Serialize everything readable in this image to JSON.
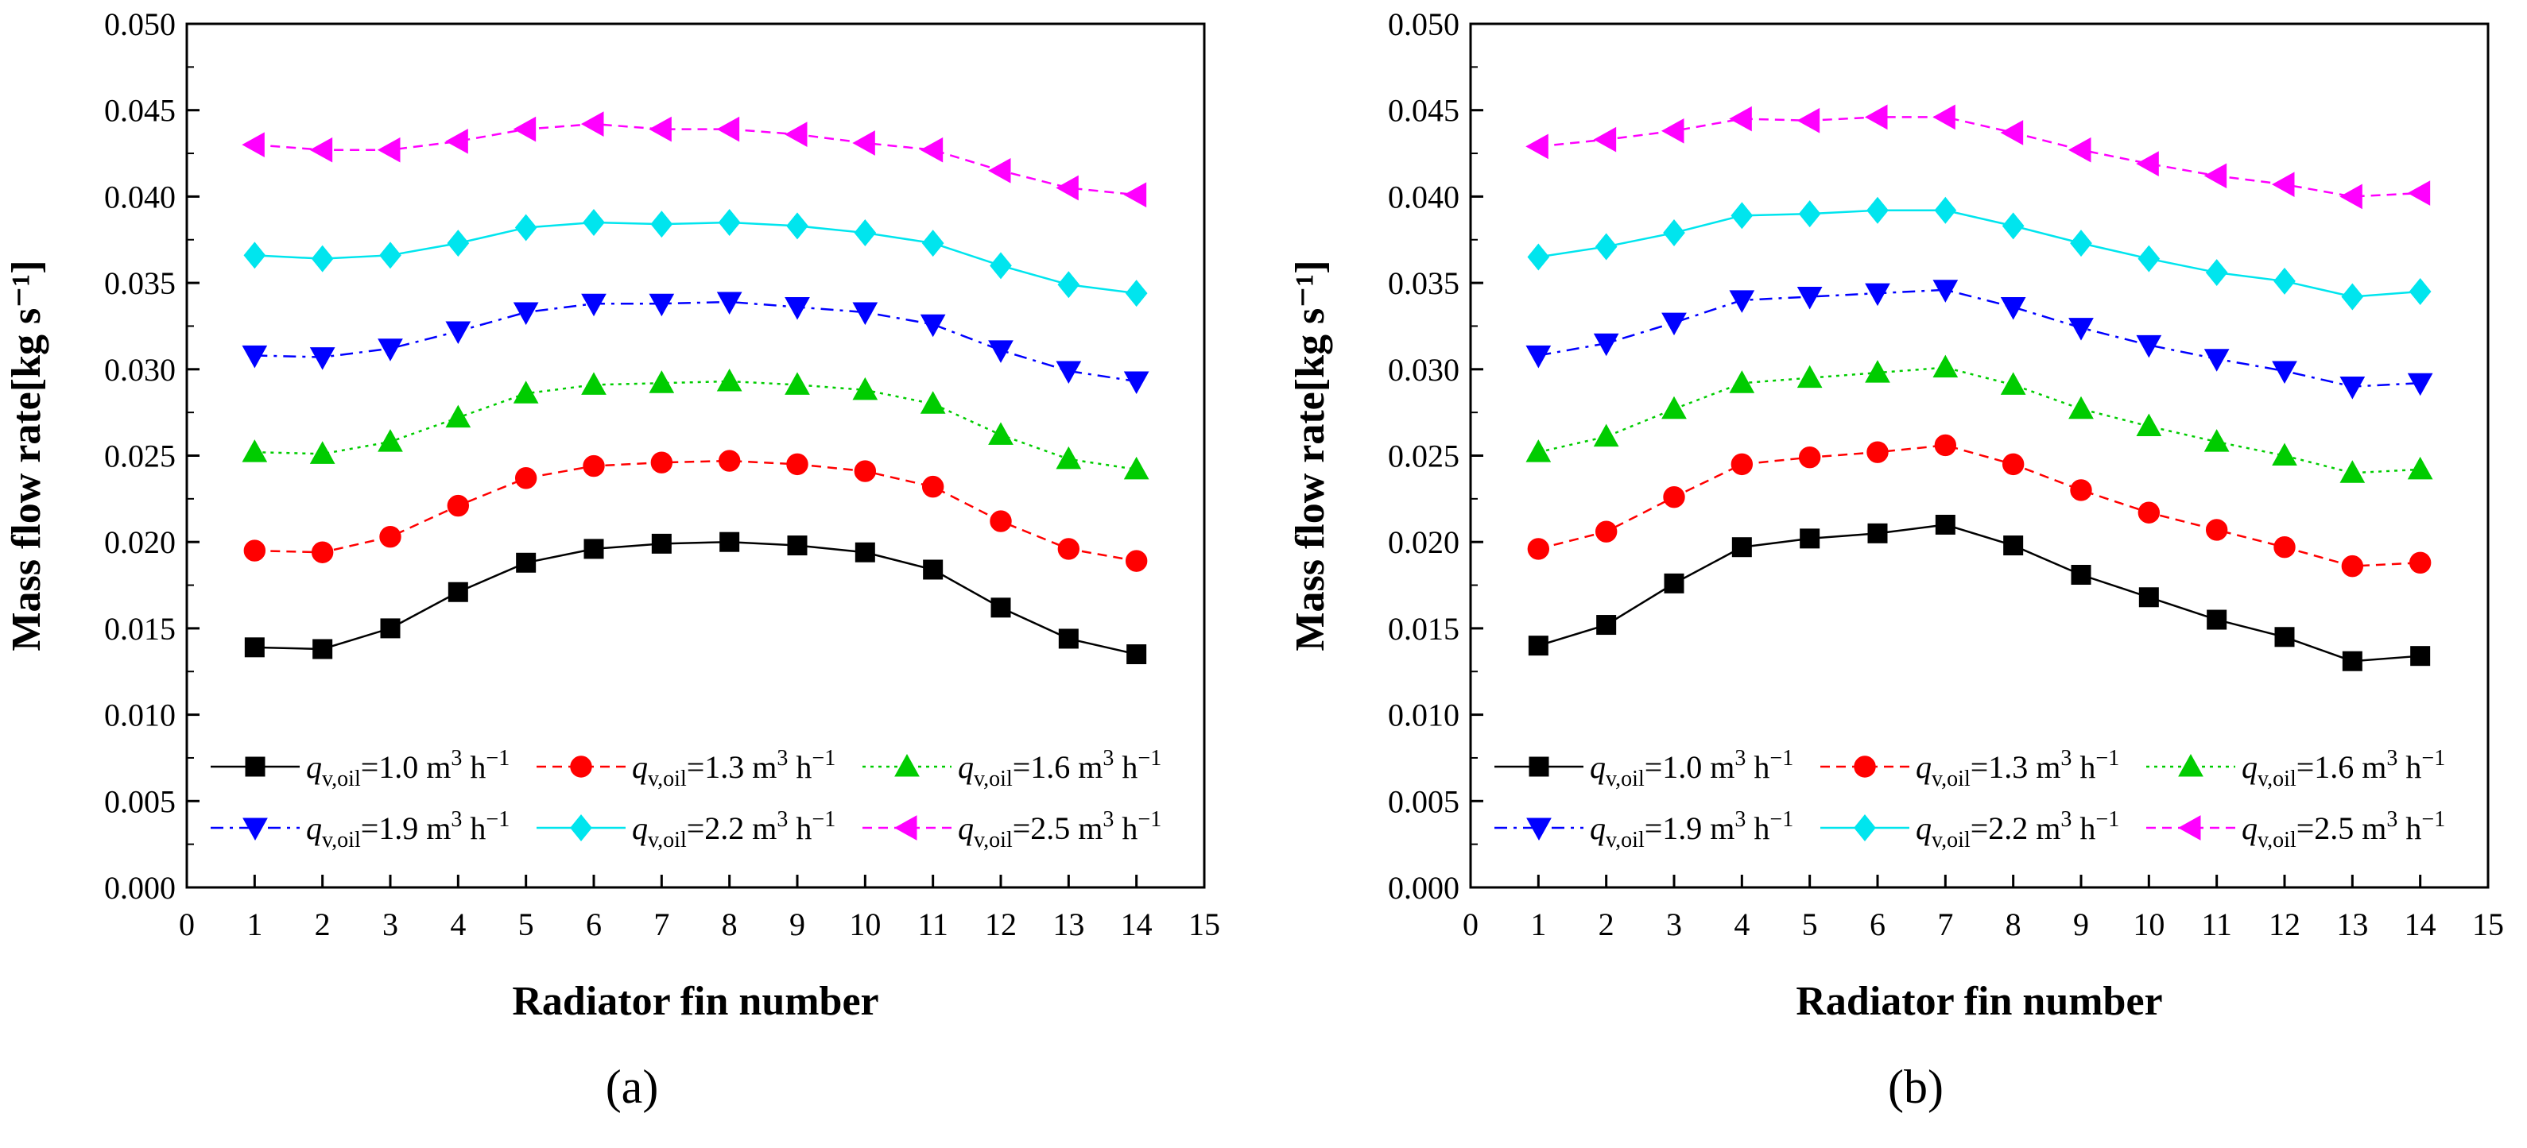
{
  "chart_data": [
    {
      "type": "line",
      "panel_label": "(a)",
      "xlabel": "Radiator fin number",
      "ylabel": "Mass flow rate[kg s⁻¹]",
      "xlim": [
        0,
        15
      ],
      "ylim": [
        0.0,
        0.05
      ],
      "xticks": [
        "0",
        "1",
        "2",
        "3",
        "4",
        "5",
        "6",
        "7",
        "8",
        "9",
        "10",
        "11",
        "12",
        "13",
        "14",
        "15"
      ],
      "yticks": [
        "0.000",
        "0.005",
        "0.010",
        "0.015",
        "0.020",
        "0.025",
        "0.030",
        "0.035",
        "0.040",
        "0.045",
        "0.050"
      ],
      "x": [
        1,
        2,
        3,
        4,
        5,
        6,
        7,
        8,
        9,
        10,
        11,
        12,
        13,
        14
      ],
      "series": [
        {
          "name": "1.0",
          "color": "#000000",
          "marker": "square",
          "dash": "solid",
          "values": [
            0.0139,
            0.0138,
            0.015,
            0.0171,
            0.0188,
            0.0196,
            0.0199,
            0.02,
            0.0198,
            0.0194,
            0.0184,
            0.0162,
            0.0144,
            0.0135
          ]
        },
        {
          "name": "1.3",
          "color": "#ff0000",
          "marker": "circle",
          "dash": "dash",
          "values": [
            0.0195,
            0.0194,
            0.0203,
            0.0221,
            0.0237,
            0.0244,
            0.0246,
            0.0247,
            0.0245,
            0.0241,
            0.0232,
            0.0212,
            0.0196,
            0.0189
          ]
        },
        {
          "name": "1.6",
          "color": "#00cc00",
          "marker": "triangle-up",
          "dash": "dot",
          "values": [
            0.0252,
            0.0251,
            0.0258,
            0.0272,
            0.0286,
            0.0291,
            0.0292,
            0.0293,
            0.0291,
            0.0288,
            0.028,
            0.0262,
            0.0248,
            0.0242
          ]
        },
        {
          "name": "1.9",
          "color": "#0000ff",
          "marker": "triangle-down",
          "dash": "dashdot",
          "values": [
            0.0308,
            0.0307,
            0.0312,
            0.0322,
            0.0333,
            0.0338,
            0.0338,
            0.0339,
            0.0336,
            0.0333,
            0.0326,
            0.0311,
            0.0299,
            0.0293
          ]
        },
        {
          "name": "2.2",
          "color": "#00e5ee",
          "marker": "diamond",
          "dash": "solid",
          "values": [
            0.0366,
            0.0364,
            0.0366,
            0.0373,
            0.0382,
            0.0385,
            0.0384,
            0.0385,
            0.0383,
            0.0379,
            0.0373,
            0.036,
            0.0349,
            0.0344
          ]
        },
        {
          "name": "2.5",
          "color": "#ff00ff",
          "marker": "triangle-left",
          "dash": "dash",
          "values": [
            0.043,
            0.0427,
            0.0427,
            0.0432,
            0.0439,
            0.0442,
            0.0439,
            0.0439,
            0.0436,
            0.0431,
            0.0427,
            0.0415,
            0.0405,
            0.0401
          ]
        }
      ]
    },
    {
      "type": "line",
      "panel_label": "(b)",
      "xlabel": "Radiator fin number",
      "ylabel": "Mass flow rate[kg s⁻¹]",
      "xlim": [
        0,
        15
      ],
      "ylim": [
        0.0,
        0.05
      ],
      "xticks": [
        "0",
        "1",
        "2",
        "3",
        "4",
        "5",
        "6",
        "7",
        "8",
        "9",
        "10",
        "11",
        "12",
        "13",
        "14",
        "15"
      ],
      "yticks": [
        "0.000",
        "0.005",
        "0.010",
        "0.015",
        "0.020",
        "0.025",
        "0.030",
        "0.035",
        "0.040",
        "0.045",
        "0.050"
      ],
      "x": [
        1,
        2,
        3,
        4,
        5,
        6,
        7,
        8,
        9,
        10,
        11,
        12,
        13,
        14
      ],
      "series": [
        {
          "name": "1.0",
          "color": "#000000",
          "marker": "square",
          "dash": "solid",
          "values": [
            0.014,
            0.0152,
            0.0176,
            0.0197,
            0.0202,
            0.0205,
            0.021,
            0.0198,
            0.0181,
            0.0168,
            0.0155,
            0.0145,
            0.0131,
            0.0134
          ]
        },
        {
          "name": "1.3",
          "color": "#ff0000",
          "marker": "circle",
          "dash": "dash",
          "values": [
            0.0196,
            0.0206,
            0.0226,
            0.0245,
            0.0249,
            0.0252,
            0.0256,
            0.0245,
            0.023,
            0.0217,
            0.0207,
            0.0197,
            0.0186,
            0.0188
          ]
        },
        {
          "name": "1.6",
          "color": "#00cc00",
          "marker": "triangle-up",
          "dash": "dot",
          "values": [
            0.0252,
            0.0261,
            0.0277,
            0.0292,
            0.0295,
            0.0298,
            0.0301,
            0.0291,
            0.0277,
            0.0267,
            0.0258,
            0.025,
            0.024,
            0.0242
          ]
        },
        {
          "name": "1.9",
          "color": "#0000ff",
          "marker": "triangle-down",
          "dash": "dashdot",
          "values": [
            0.0308,
            0.0315,
            0.0327,
            0.034,
            0.0342,
            0.0344,
            0.0346,
            0.0336,
            0.0324,
            0.0314,
            0.0306,
            0.0299,
            0.029,
            0.0292
          ]
        },
        {
          "name": "2.2",
          "color": "#00e5ee",
          "marker": "diamond",
          "dash": "solid",
          "values": [
            0.0365,
            0.0371,
            0.0379,
            0.0389,
            0.039,
            0.0392,
            0.0392,
            0.0383,
            0.0373,
            0.0364,
            0.0356,
            0.0351,
            0.0342,
            0.0345
          ]
        },
        {
          "name": "2.5",
          "color": "#ff00ff",
          "marker": "triangle-left",
          "dash": "dash",
          "values": [
            0.0429,
            0.0433,
            0.0438,
            0.0445,
            0.0444,
            0.0446,
            0.0446,
            0.0437,
            0.0427,
            0.0419,
            0.0412,
            0.0407,
            0.04,
            0.0402
          ]
        }
      ]
    }
  ],
  "legend": {
    "var": "q",
    "subscript": "v,oil",
    "eq": "=",
    "unit_m": " m",
    "unit_m_exp": "3",
    "unit_h": " h",
    "unit_h_exp": "−1"
  }
}
